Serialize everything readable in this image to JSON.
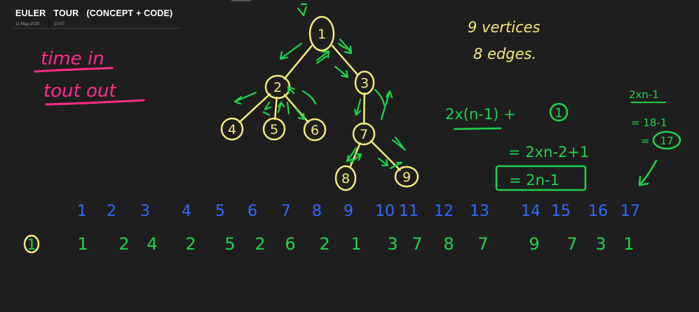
{
  "page": {
    "title": "EULER   TOUR   (CONCEPT + CODE)",
    "date": "11 May 2020",
    "time": "10:57"
  },
  "colors": {
    "background": "#1f1e1e",
    "pink": "#ff2d8a",
    "yellow": "#f2ec7a",
    "green": "#1fd34c",
    "blue": "#2f6bff"
  },
  "notes": {
    "time_in": "time  in",
    "tout_out": "tout  out",
    "vertices": "9  vertices",
    "edges": "8  edges.",
    "formula1": "2x(n-1) +",
    "formula1_circled": "1",
    "formula2": "= 2xn-2+1",
    "formula3": "= 2n-1",
    "side1": "2xn-1",
    "side2": "= 18-1",
    "side3": "=",
    "side3_circled": "17"
  },
  "tree": {
    "nodes": [
      {
        "id": "1",
        "label": "1"
      },
      {
        "id": "2",
        "label": "2"
      },
      {
        "id": "3",
        "label": "3"
      },
      {
        "id": "4",
        "label": "4"
      },
      {
        "id": "5",
        "label": "5"
      },
      {
        "id": "6",
        "label": "6"
      },
      {
        "id": "7",
        "label": "7"
      },
      {
        "id": "8",
        "label": "8"
      },
      {
        "id": "9",
        "label": "9"
      }
    ],
    "edges": [
      [
        "1",
        "2"
      ],
      [
        "1",
        "3"
      ],
      [
        "2",
        "4"
      ],
      [
        "2",
        "5"
      ],
      [
        "2",
        "6"
      ],
      [
        "3",
        "7"
      ],
      [
        "7",
        "8"
      ],
      [
        "7",
        "9"
      ]
    ]
  },
  "indices": [
    "1",
    "2",
    "3",
    "4",
    "5",
    "6",
    "7",
    "8",
    "9",
    "10",
    "11",
    "12",
    "13",
    "14",
    "15",
    "16",
    "17"
  ],
  "tour_start": "1",
  "tour": [
    "1",
    "2",
    "4",
    "2",
    "5",
    "2",
    "6",
    "2",
    "1",
    "3",
    "7",
    "8",
    "7",
    "9",
    "7",
    "3",
    "1"
  ]
}
